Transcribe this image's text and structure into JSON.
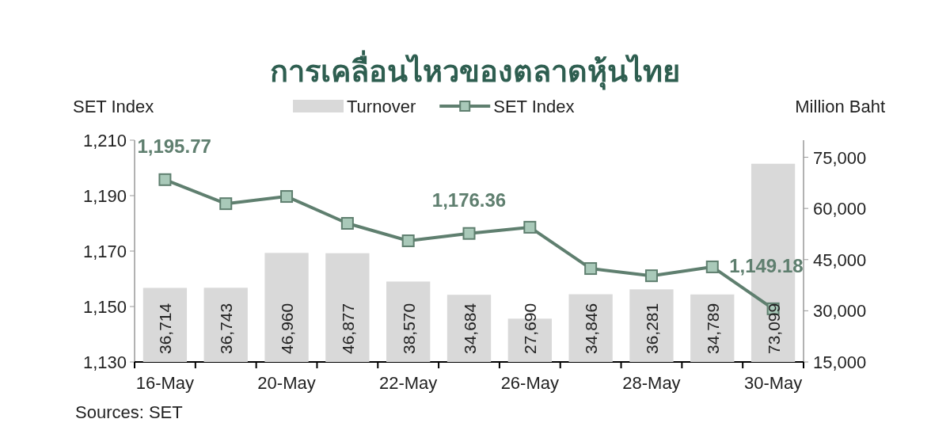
{
  "chart_data": {
    "type": "bar",
    "title": "การเคลื่อนไหวของตลาดหุ้นไทย",
    "ylabel": "SET Index",
    "y2label": "Million Baht",
    "annotations": [
      "Sources: SET"
    ],
    "categories": [
      "16-May",
      null,
      "20-May",
      null,
      "22-May",
      null,
      "26-May",
      null,
      "28-May",
      null,
      "30-May"
    ],
    "series": [
      {
        "name": "Turnover",
        "axis": "y2",
        "color": "#d9d9d9",
        "values": [
          36714,
          36743,
          46960,
          46877,
          38570,
          34684,
          27690,
          34846,
          36281,
          34789,
          73099
        ],
        "value_labels": [
          "36,714",
          "36,743",
          "46,960",
          "46,877",
          "38,570",
          "34,684",
          "27,690",
          "34,846",
          "36,281",
          "34,789",
          "73,099"
        ]
      },
      {
        "name": "SET Index",
        "type": "line",
        "axis": "y",
        "color": "#5f7f6f",
        "marker": "square",
        "values": [
          1195.77,
          1187.1,
          1189.7,
          1180.0,
          1173.7,
          1176.36,
          1178.6,
          1163.7,
          1161.1,
          1164.3,
          1149.18
        ],
        "value_labels": [
          "1,195.77",
          null,
          null,
          null,
          null,
          "1,176.36",
          null,
          null,
          null,
          null,
          "1,149.18"
        ]
      }
    ],
    "ylim": [
      1130,
      1210
    ],
    "yticks": [
      {
        "value": 1130,
        "label": "1,130"
      },
      {
        "value": 1150,
        "label": "1,150"
      },
      {
        "value": 1170,
        "label": "1,170"
      },
      {
        "value": 1190,
        "label": "1,190"
      },
      {
        "value": 1210,
        "label": "1,210"
      }
    ],
    "y2lim": [
      15000,
      80000
    ],
    "y2ticks": [
      {
        "value": 15000,
        "label": "15,000"
      },
      {
        "value": 30000,
        "label": "30,000"
      },
      {
        "value": 45000,
        "label": "45,000"
      },
      {
        "value": 60000,
        "label": "60,000"
      },
      {
        "value": 75000,
        "label": "75,000"
      }
    ],
    "legend": "top",
    "grid": false
  }
}
